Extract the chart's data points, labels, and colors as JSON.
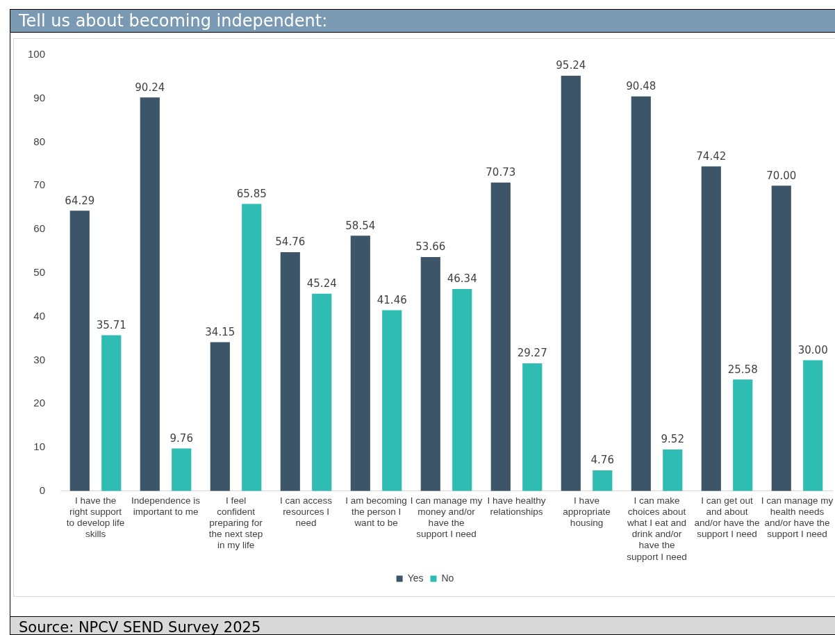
{
  "chart_data": {
    "type": "bar",
    "title": "Tell us about becoming independent:",
    "categories": [
      "I have the right support to develop life skills",
      "Independence is important to me",
      "I feel confident preparing for the next step in my life",
      "I can access resources I need",
      "I am becoming the person I want to be",
      "I can manage my money and/or have the support I need",
      "I have healthy relationships",
      "I have appropriate housing",
      "I can make choices about what I eat and drink and/or have the support I need",
      "I can get out and about and/or have the support I need",
      "I can manage my health needs and/or have the support I need"
    ],
    "series": [
      {
        "name": "Yes",
        "color": "#3d5568",
        "values": [
          64.29,
          90.24,
          34.15,
          54.76,
          58.54,
          53.66,
          70.73,
          95.24,
          90.48,
          74.42,
          70.0
        ],
        "value_labels": [
          "64.29",
          "90.24",
          "34.15",
          "54.76",
          "58.54",
          "53.66",
          "70.73",
          "95.24",
          "90.48",
          "74.42",
          "70.00"
        ]
      },
      {
        "name": "No",
        "color": "#2ebcb3",
        "values": [
          35.71,
          9.76,
          65.85,
          45.24,
          41.46,
          46.34,
          29.27,
          4.76,
          9.52,
          25.58,
          30.0
        ],
        "value_labels": [
          "35.71",
          "9.76",
          "65.85",
          "45.24",
          "41.46",
          "46.34",
          "29.27",
          "4.76",
          "9.52",
          "25.58",
          "30.00"
        ]
      }
    ],
    "ylim": [
      0,
      100
    ],
    "yticks": [
      0,
      10,
      20,
      30,
      40,
      50,
      60,
      70,
      80,
      90,
      100
    ],
    "grid": false,
    "legend": "bottom",
    "annotations": [
      "Source: NPCV SEND Survey 2025"
    ]
  }
}
